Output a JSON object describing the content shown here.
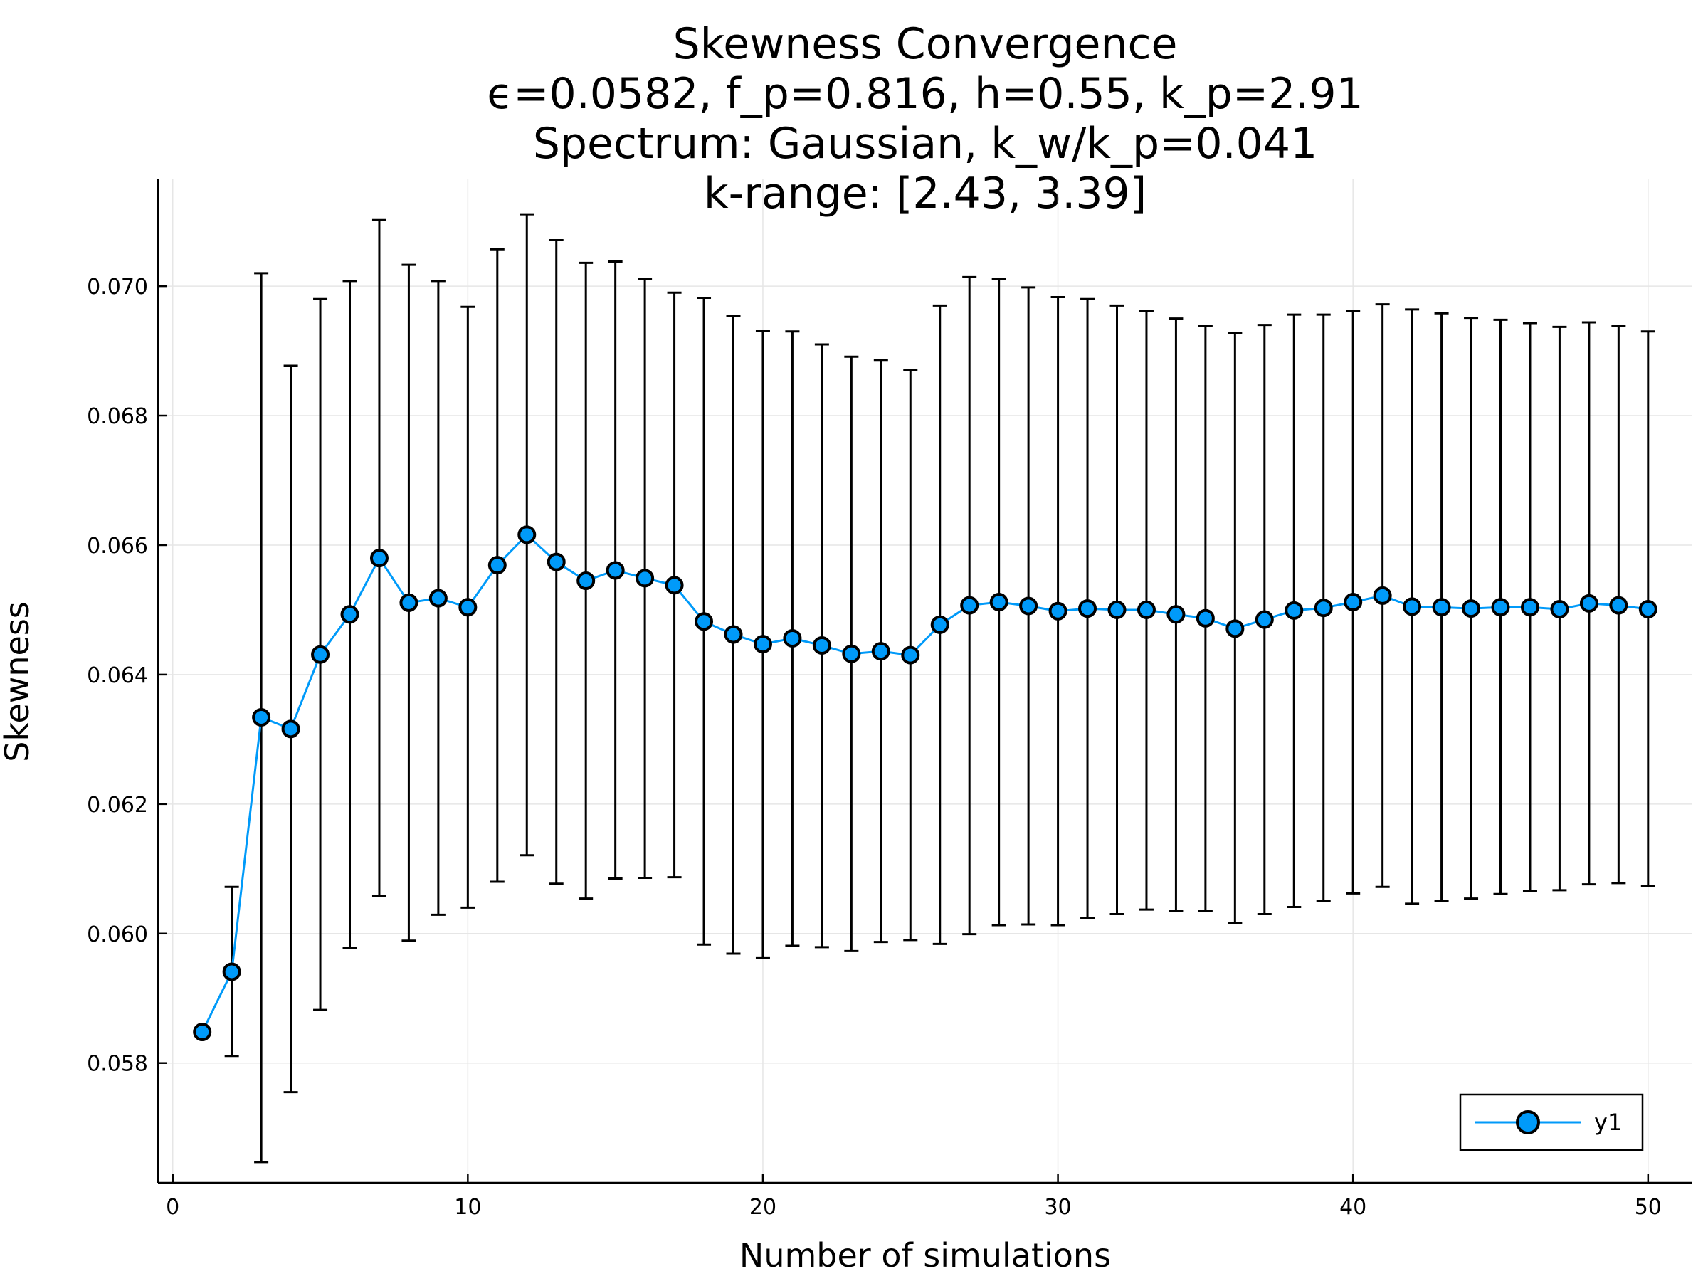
{
  "chart_data": {
    "type": "line",
    "title_lines": [
      "Skewness Convergence",
      "ϵ=0.0582, f_p=0.816, h=0.55, k_p=2.91",
      "Spectrum: Gaussian, k_w/k_p=0.041",
      "k-range: [2.43, 3.39]"
    ],
    "xlabel": "Number of simulations",
    "ylabel": "Skewness",
    "xlim": [
      -0.5,
      51.5
    ],
    "ylim": [
      0.05615,
      0.07165
    ],
    "xticks": [
      0,
      10,
      20,
      30,
      40,
      50
    ],
    "xtick_labels": [
      "0",
      "10",
      "20",
      "30",
      "40",
      "50"
    ],
    "yticks": [
      0.058,
      0.06,
      0.062,
      0.064,
      0.066,
      0.068,
      0.07
    ],
    "ytick_labels": [
      "0.058",
      "0.060",
      "0.062",
      "0.064",
      "0.066",
      "0.068",
      "0.070"
    ],
    "grid": true,
    "legend_position": "bottom-right",
    "series": [
      {
        "name": "y1",
        "color": "#009af9",
        "x": [
          1,
          2,
          3,
          4,
          5,
          6,
          7,
          8,
          9,
          10,
          11,
          12,
          13,
          14,
          15,
          16,
          17,
          18,
          19,
          20,
          21,
          22,
          23,
          24,
          25,
          26,
          27,
          28,
          29,
          30,
          31,
          32,
          33,
          34,
          35,
          36,
          37,
          38,
          39,
          40,
          41,
          42,
          43,
          44,
          45,
          46,
          47,
          48,
          49,
          50
        ],
        "y": [
          0.05848,
          0.05941,
          0.06334,
          0.06316,
          0.06431,
          0.06493,
          0.0658,
          0.06511,
          0.06518,
          0.06504,
          0.06569,
          0.06616,
          0.06574,
          0.06545,
          0.06561,
          0.06549,
          0.06538,
          0.06482,
          0.06462,
          0.06447,
          0.06456,
          0.06445,
          0.06432,
          0.06436,
          0.0643,
          0.06477,
          0.06507,
          0.06512,
          0.06506,
          0.06498,
          0.06502,
          0.065,
          0.065,
          0.06493,
          0.06487,
          0.06471,
          0.06485,
          0.06499,
          0.06503,
          0.06512,
          0.06522,
          0.06505,
          0.06504,
          0.06502,
          0.06504,
          0.06504,
          0.06501,
          0.0651,
          0.06507,
          0.06501
        ],
        "err_high": [
          null,
          0.06072,
          0.0702,
          0.06877,
          0.0698,
          0.07008,
          0.07102,
          0.07033,
          0.07008,
          0.06968,
          0.07057,
          0.07111,
          0.07071,
          0.07036,
          0.07038,
          0.07011,
          0.0699,
          0.06982,
          0.06954,
          0.06931,
          0.0693,
          0.0691,
          0.06891,
          0.06886,
          0.06871,
          0.0697,
          0.07014,
          0.07011,
          0.06998,
          0.06983,
          0.0698,
          0.0697,
          0.06962,
          0.0695,
          0.06939,
          0.06927,
          0.0694,
          0.06956,
          0.06956,
          0.06962,
          0.06972,
          0.06964,
          0.06958,
          0.06951,
          0.06948,
          0.06943,
          0.06937,
          0.06944,
          0.06938,
          0.0693
        ],
        "err_low": [
          null,
          0.05811,
          0.05647,
          0.05755,
          0.05882,
          0.05978,
          0.06058,
          0.05989,
          0.06029,
          0.0604,
          0.0608,
          0.06121,
          0.06077,
          0.06054,
          0.06085,
          0.06086,
          0.06087,
          0.05983,
          0.05969,
          0.05962,
          0.05981,
          0.05979,
          0.05973,
          0.05987,
          0.0599,
          0.05984,
          0.05999,
          0.06013,
          0.06014,
          0.06013,
          0.06024,
          0.0603,
          0.06037,
          0.06035,
          0.06035,
          0.06016,
          0.0603,
          0.06041,
          0.0605,
          0.06062,
          0.06072,
          0.06046,
          0.0605,
          0.06054,
          0.06061,
          0.06066,
          0.06067,
          0.06076,
          0.06078,
          0.06074
        ]
      }
    ]
  }
}
